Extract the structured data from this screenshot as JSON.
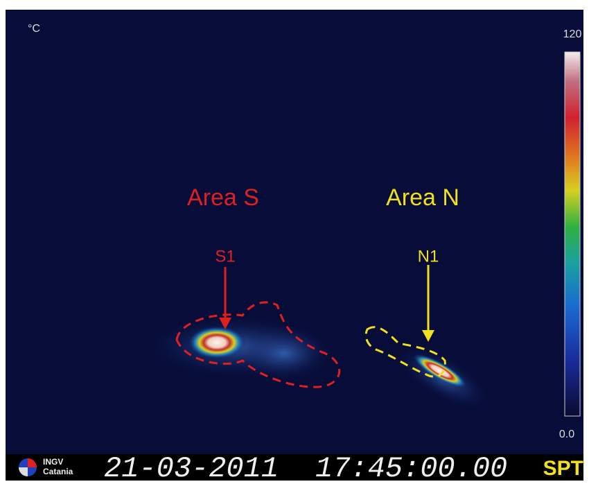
{
  "scale": {
    "unit": "°C",
    "max": "120",
    "min": "0.0"
  },
  "areas": [
    {
      "label": "Area S",
      "vent": "S1"
    },
    {
      "label": "Area N",
      "vent": "N1"
    }
  ],
  "footer": {
    "logo_line1": "INGV",
    "logo_line2": "Catania",
    "date": "21-03-2011",
    "time": "17:45:00.00",
    "station": "SPT"
  }
}
